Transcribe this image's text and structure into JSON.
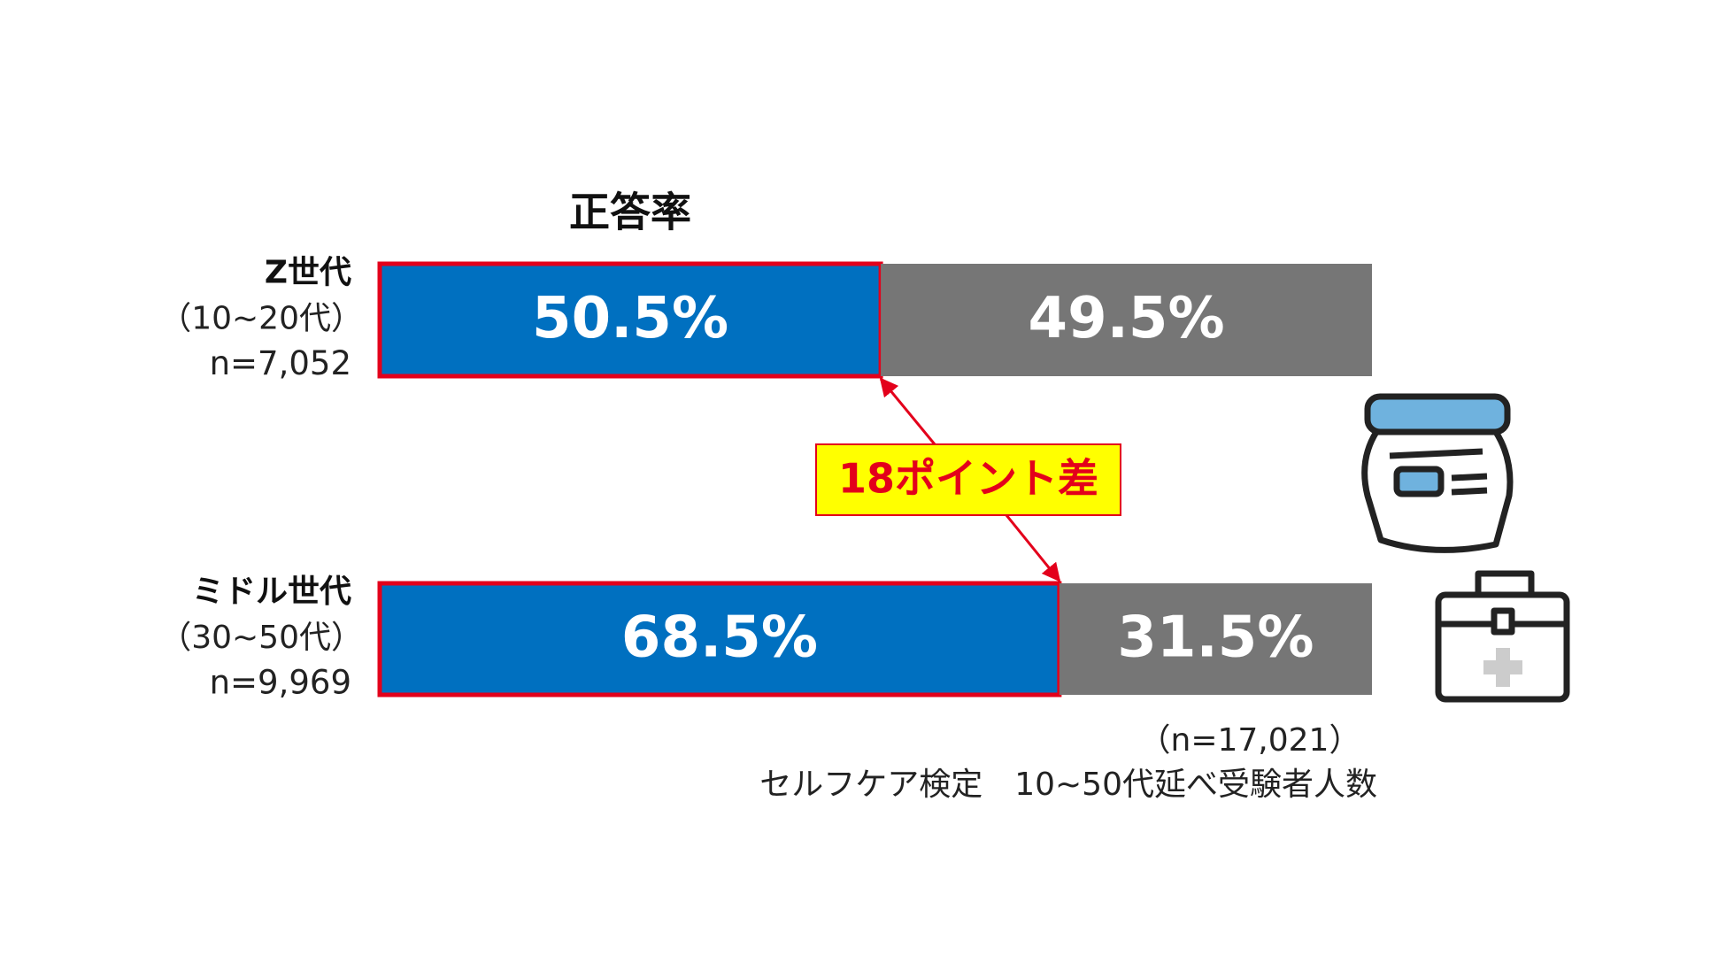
{
  "chart_data": {
    "type": "stacked_bar_horizontal",
    "title": "正答率",
    "categories": [
      "Z世代",
      "ミドル世代"
    ],
    "category_ranges": [
      "（10~20代）",
      "（30~50代）"
    ],
    "category_counts": [
      "n=7,052",
      "n=9,969"
    ],
    "series": [
      {
        "color": "#0070c0",
        "values": [
          50.5,
          68.5
        ],
        "value_labels": [
          "50.5%",
          "68.5%"
        ],
        "highlight_color": "#e3001b"
      },
      {
        "color": "#767676",
        "values": [
          49.5,
          31.5
        ],
        "value_labels": [
          "49.5%",
          "31.5%"
        ]
      }
    ],
    "xlim": [
      0,
      100
    ],
    "annotation": "18ポイント差",
    "notes": [
      "（n=17,021）",
      "セルフケア検定　10~50代延べ受験者人数"
    ]
  }
}
